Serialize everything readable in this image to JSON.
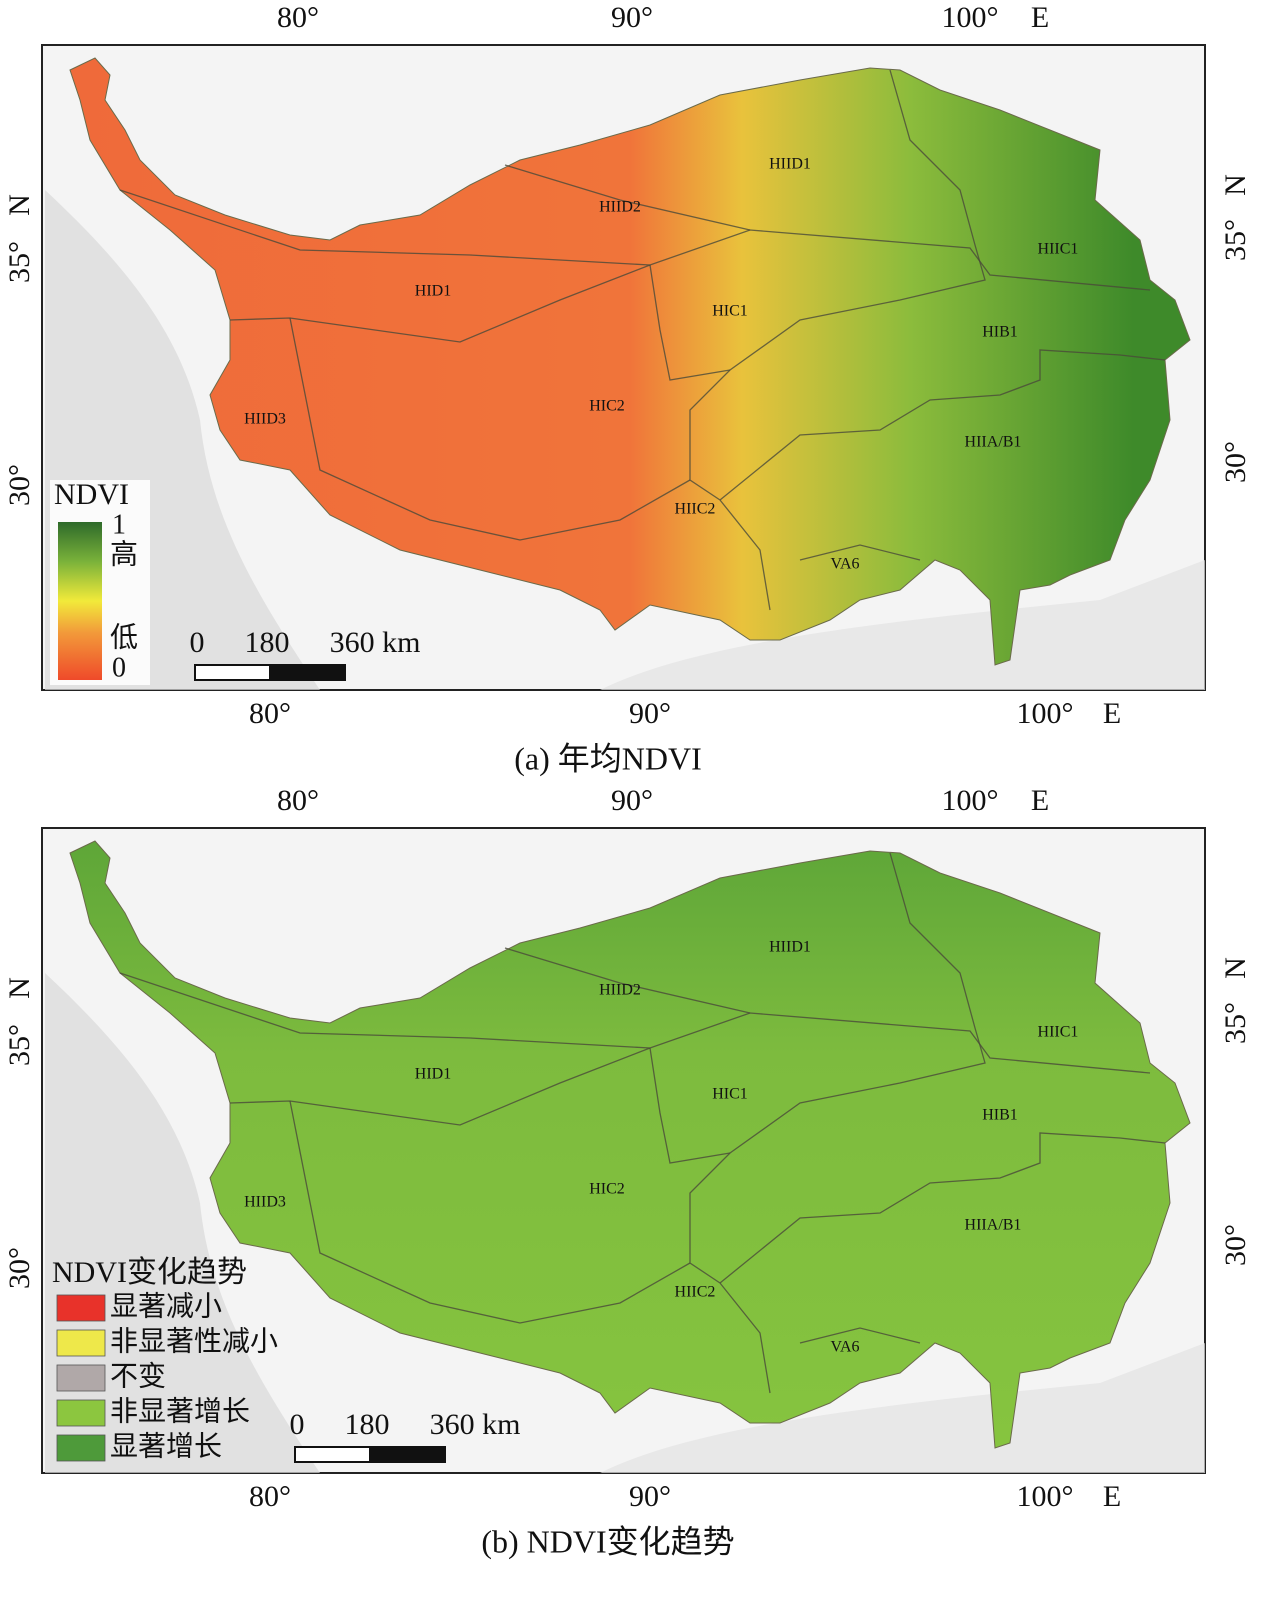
{
  "panels": [
    {
      "lon_top": [
        "80°",
        "90°",
        "100°",
        "E"
      ],
      "lon_bottom": [
        "80°",
        "90°",
        "100°",
        "E"
      ],
      "lat_left": [
        "N",
        "35°",
        "30°"
      ],
      "lat_right": [
        "N",
        "35°",
        "30°"
      ],
      "regions": [
        "HIID1",
        "HIID2",
        "HIIC1",
        "HID1",
        "HIC1",
        "HIB1",
        "HIID3",
        "HIC2",
        "HIIA/B1",
        "HIIC2",
        "VA6"
      ],
      "legend": {
        "title": "NDVI",
        "labels": [
          "1",
          "高",
          "低",
          "0"
        ]
      },
      "scale_labels": [
        "0",
        "180",
        "360 km"
      ],
      "caption": "(a) 年均NDVI"
    },
    {
      "lon_top": [
        "80°",
        "90°",
        "100°",
        "E"
      ],
      "lon_bottom": [
        "80°",
        "90°",
        "100°",
        "E"
      ],
      "lat_left": [
        "N",
        "35°",
        "30°"
      ],
      "lat_right": [
        "N",
        "35°",
        "30°"
      ],
      "regions": [
        "HIID1",
        "HIID2",
        "HIIC1",
        "HID1",
        "HIC1",
        "HIB1",
        "HIID3",
        "HIC2",
        "HIIA/B1",
        "HIIC2",
        "VA6"
      ],
      "legend": {
        "title": "NDVI变化趋势",
        "items": [
          {
            "label": "显著减小",
            "color": "#e8322a"
          },
          {
            "label": "非显著性减小",
            "color": "#eee84a"
          },
          {
            "label": "不变",
            "color": "#b0a8a8"
          },
          {
            "label": "非显著增长",
            "color": "#8cc63f"
          },
          {
            "label": "显著增长",
            "color": "#4e9a3a"
          }
        ]
      },
      "scale_labels": [
        "0",
        "180",
        "360 km"
      ],
      "caption": "(b) NDVI变化趋势"
    }
  ]
}
